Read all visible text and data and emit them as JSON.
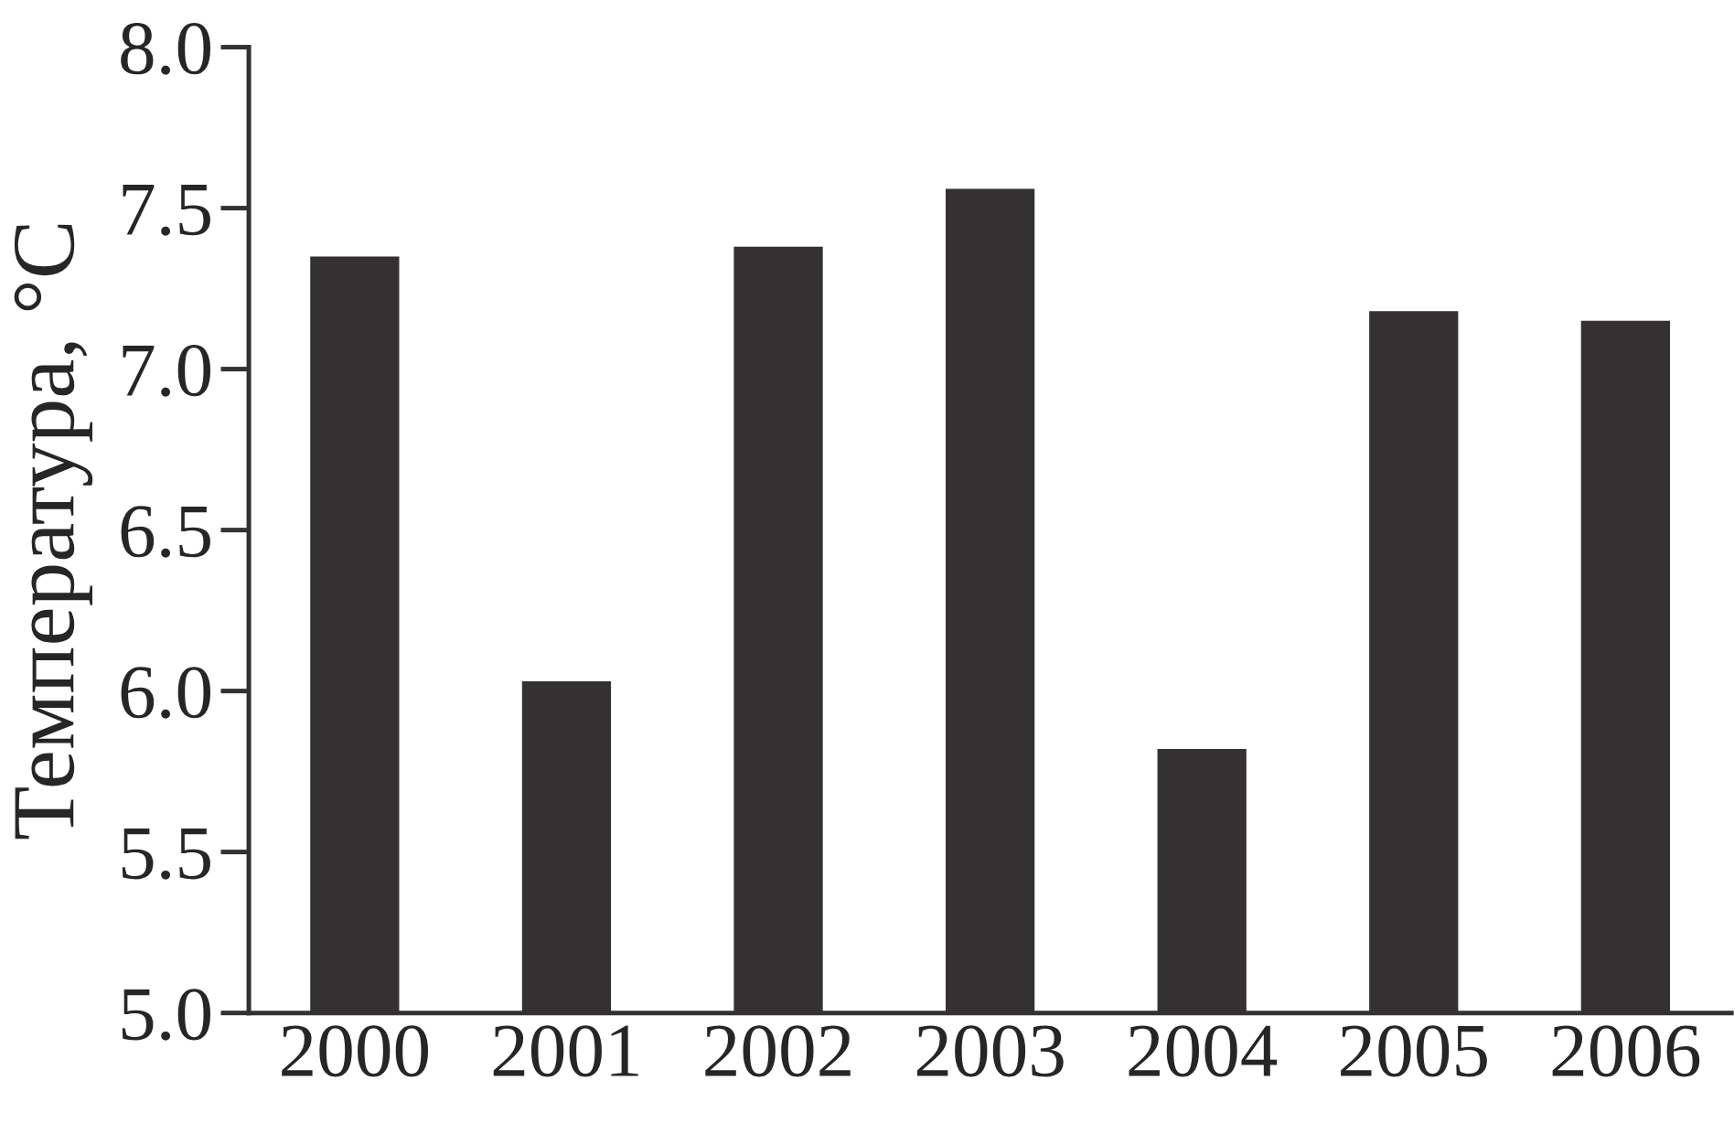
{
  "chart_data": {
    "type": "bar",
    "ylabel": "Температура, °C",
    "categories": [
      "2000",
      "2001",
      "2002",
      "2003",
      "2004",
      "2005",
      "2006"
    ],
    "values": [
      7.35,
      6.03,
      7.38,
      7.56,
      5.82,
      7.18,
      7.15
    ],
    "color": "#333132",
    "ylim": [
      5,
      8
    ],
    "yticks": [
      {
        "value": 5,
        "label": "5.0"
      },
      {
        "value": 5.5,
        "label": "5.5"
      },
      {
        "value": 6,
        "label": "6.0"
      },
      {
        "value": 6.5,
        "label": "6.5"
      },
      {
        "value": 7,
        "label": "7.0"
      },
      {
        "value": 7.5,
        "label": "7.5"
      },
      {
        "value": 8,
        "label": "8.0"
      }
    ],
    "grid": false
  }
}
